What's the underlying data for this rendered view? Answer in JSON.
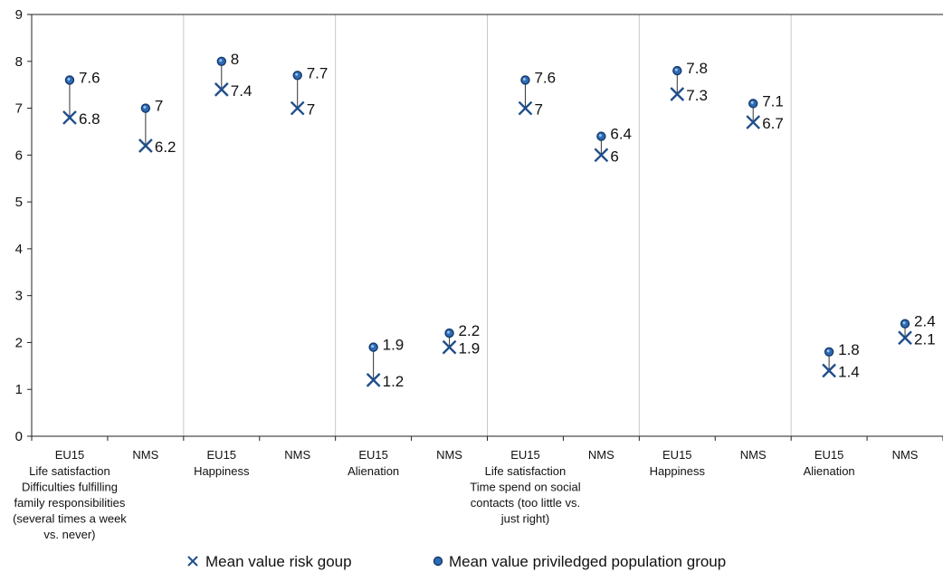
{
  "chart_data": {
    "type": "scatter",
    "title": "",
    "xlabel": "",
    "ylabel": "",
    "ylim": [
      0,
      9
    ],
    "yticks": [
      0,
      1,
      2,
      3,
      4,
      5,
      6,
      7,
      8,
      9
    ],
    "grid": false,
    "legend_position": "bottom",
    "colors": {
      "risk": "#1f4e8c",
      "privileged": "#2e6bb5",
      "connector": "#333333",
      "separator": "#c8c8c8",
      "axis": "#222222"
    },
    "groups": [
      {
        "label_lines": [
          "Life satisfaction",
          "Difficulties fulfilling",
          "family responsibilities",
          "(several times a week",
          "vs. never)"
        ]
      },
      {
        "label_lines": [
          "Happiness"
        ]
      },
      {
        "label_lines": [
          "Alienation"
        ]
      },
      {
        "label_lines": [
          "Life satisfaction",
          "Time spend on social",
          "contacts (too little vs.",
          "just right)"
        ]
      },
      {
        "label_lines": [
          "Happiness"
        ]
      },
      {
        "label_lines": [
          "Alienation"
        ]
      }
    ],
    "categories": [
      "EU15",
      "NMS",
      "EU15",
      "NMS",
      "EU15",
      "NMS",
      "EU15",
      "NMS",
      "EU15",
      "NMS",
      "EU15",
      "NMS"
    ],
    "series": [
      {
        "name": "Mean value risk goup",
        "marker": "x",
        "values": [
          6.8,
          6.2,
          7.4,
          7,
          1.2,
          1.9,
          7,
          6,
          7.3,
          6.7,
          1.4,
          2.1
        ],
        "labels": [
          "6.8",
          "6.2",
          "7.4",
          "7",
          "1.2",
          "1.9",
          "7",
          "6",
          "7.3",
          "6.7",
          "1.4",
          "2.1"
        ]
      },
      {
        "name": "Mean value priviledged population group",
        "marker": "circle",
        "values": [
          7.6,
          7,
          8,
          7.7,
          1.9,
          2.2,
          7.6,
          6.4,
          7.8,
          7.1,
          1.8,
          2.4
        ],
        "labels": [
          "7.6",
          "7",
          "8",
          "7.7",
          "1.9",
          "2.2",
          "7.6",
          "6.4",
          "7.8",
          "7.1",
          "1.8",
          "2.4"
        ]
      }
    ]
  }
}
